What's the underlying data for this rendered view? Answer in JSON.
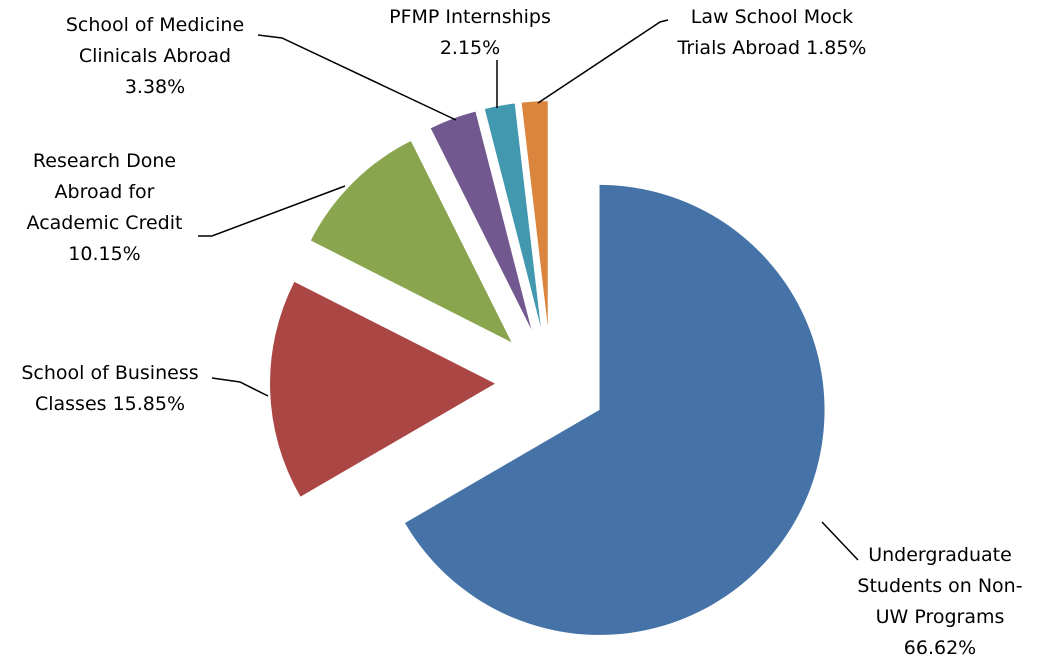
{
  "chart_data": {
    "type": "pie",
    "categories": [
      "Undergraduate Students on Non-UW Programs",
      "School of Business Classes",
      "Research Done Abroad for Academic Credit",
      "School of Medicine Clinicals Abroad",
      "PFMP Internships",
      "Law School Mock Trials Abroad"
    ],
    "values": [
      66.62,
      15.85,
      10.15,
      3.38,
      2.15,
      1.85
    ],
    "value_labels": [
      "66.62%",
      "15.85%",
      "10.15%",
      "3.38%",
      "2.15%",
      "1.85%"
    ],
    "colors": [
      "#4572a7",
      "#aa4643",
      "#89a54e",
      "#71588f",
      "#4198af",
      "#db843d"
    ]
  }
}
